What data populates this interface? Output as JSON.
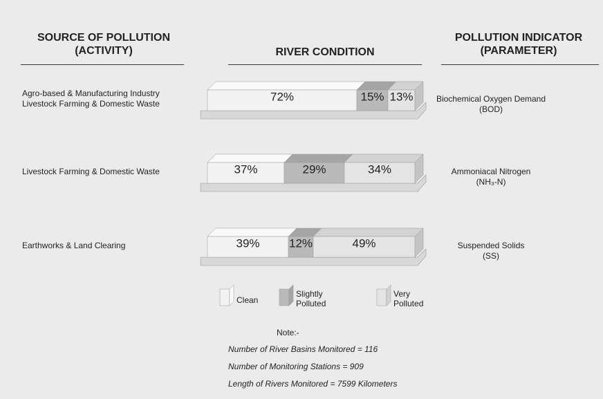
{
  "chart_data": {
    "type": "bar",
    "orientation": "horizontal",
    "stacked": true,
    "headers": [
      "SOURCE OF POLLUTION\n(ACTIVITY)",
      "RIVER CONDITION",
      "POLLUTION INDICATOR\n(PARAMETER)"
    ],
    "categories": [
      "Agro-based & Manufacturing Industry\nLivestock Farming & Domestic Waste",
      "Livestock Farming & Domestic Waste",
      "Earthworks & Land Clearing"
    ],
    "parameters": [
      "Biochemical Oxygen Demand\n(BOD)",
      "Ammoniacal Nitrogen\n(NH₃-N)",
      "Suspended Solids\n(SS)"
    ],
    "series": [
      {
        "name": "Clean",
        "color": "#f2f2f2",
        "values": [
          72,
          37,
          39
        ],
        "value_labels": [
          "72%",
          "37%",
          "39%"
        ]
      },
      {
        "name": "Slightly\nPolluted",
        "color": "#b9b9b9",
        "values": [
          15,
          29,
          12
        ],
        "value_labels": [
          "15%",
          "29%",
          "12%"
        ]
      },
      {
        "name": "Very\nPolluted",
        "color": "#e4e4e4",
        "values": [
          13,
          34,
          49
        ],
        "value_labels": [
          "13%",
          "34%",
          "49%"
        ]
      }
    ],
    "xlim": [
      0,
      100
    ],
    "note_title": "Note:-",
    "notes": [
      "Number of River Basins Monitored = 116",
      "Number of Monitoring Stations = 909",
      "Length of Rivers Monitored = 7599 Kilometers"
    ]
  }
}
